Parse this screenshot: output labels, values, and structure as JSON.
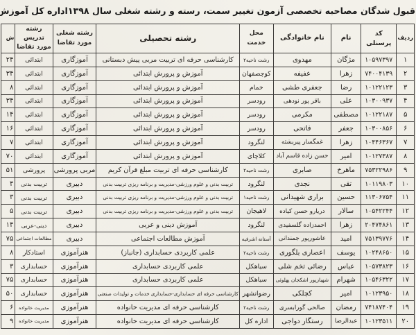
{
  "title": "قبول شدگان مصاحبه تخصصی آزمون تغییر سمت، رسته و رشته شغلی سال ۱۳۹۸اداره کل آموزش و پرورش استان گیلان",
  "table": {
    "headers": {
      "row": "ردیف",
      "code": "کد پرسنلی",
      "first_name": "نام",
      "last_name": "نام خانوادگی",
      "location": "محل خدمت",
      "education": "رشته تحصیلی",
      "job_field": "رشته شغلی مورد تقاضا",
      "teaching_field": "رشته تدریس مورد تقاضا",
      "clipped": "ش"
    },
    "rows": [
      {
        "row": "۱",
        "code": "۱۰۵۹۷۳۹۷",
        "first_name": "مژگان",
        "last_name": "مهدوی",
        "location": "رشت ناحیه۲",
        "education": "کارشناسی حرفه ای تربیت مربی پیش دبستانی",
        "job_field": "آموزگاری",
        "teaching_field": "ابتدائی",
        "clipped": "۲۴"
      },
      {
        "row": "۲",
        "code": "۷۴۰۰۴۱۳۹",
        "first_name": "زهرا",
        "last_name": "عفیفه",
        "location": "کوچصفهان",
        "education": "آموزش و پرورش ابتدائی",
        "job_field": "آموزگاری",
        "teaching_field": "ابتدائی",
        "clipped": "۳۴"
      },
      {
        "row": "۳",
        "code": "۱۰۱۲۲۱۲۳",
        "first_name": "رضا",
        "last_name": "جعفری طشی",
        "location": "خمام",
        "education": "آموزش و پرورش ابتدائی",
        "job_field": "آموزگاری",
        "teaching_field": "ابتدائی",
        "clipped": "۸"
      },
      {
        "row": "۴",
        "code": "۱۰۳۰۰۹۳۷",
        "first_name": "علی",
        "last_name": "باقر پور نودهی",
        "location": "رودسر",
        "education": "آموزش و پرورش ابتدائی",
        "job_field": "آموزگاری",
        "teaching_field": "ابتدائی",
        "clipped": "۳۴"
      },
      {
        "row": "۵",
        "code": "۱۰۱۲۲۱۸۷",
        "first_name": "مصطفی",
        "last_name": "مکرمی",
        "location": "رودسر",
        "education": "آموزش و پرورش ابتدائی",
        "job_field": "آموزگاری",
        "teaching_field": "ابتدائی",
        "clipped": "۱۴"
      },
      {
        "row": "۶",
        "code": "۱۰۳۰۰۸۵۶",
        "first_name": "جعفر",
        "last_name": "فاتحی",
        "location": "رودسر",
        "education": "آموزش و پرورش ابتدائی",
        "job_field": "آموزگاری",
        "teaching_field": "ابتدائی",
        "clipped": "۱۶"
      },
      {
        "row": "۷",
        "code": "۱۰۴۴۶۳۶۷",
        "first_name": "زهرا",
        "last_name": "غمگسار پیربشته",
        "location": "لنگرود",
        "education": "آموزش و پرورش ابتدائی",
        "job_field": "آموزگاری",
        "teaching_field": "ابتدائی",
        "clipped": "۷"
      },
      {
        "row": "۸",
        "code": "۱۰۱۲۷۳۸۷",
        "first_name": "امیر",
        "last_name": "حسن زاده قاسم آباد",
        "location": "کلاچای",
        "education": "آموزش و پرورش ابتدائی",
        "job_field": "آموزگاری",
        "teaching_field": "ابتدائی",
        "clipped": "۷۰"
      },
      {
        "row": "۹",
        "code": "۷۵۳۲۲۹۸۶",
        "first_name": "ماهرخ",
        "last_name": "صابری",
        "location": "رشت ناحیه۲",
        "education": "کارشناسی حرفه ای تربیت مبلغ قرآن کریم",
        "job_field": "مربی پرورشی",
        "teaching_field": "پرورشی",
        "clipped": "۵۱"
      },
      {
        "row": "۱۰",
        "code": "۱۰۱۱۹۸۰۳",
        "first_name": "تقی",
        "last_name": "نجدی",
        "location": "لنگرود",
        "education": "تربیت بدنی و علوم ورزشی-مدیریت و برنامه ریزی تربیت بدنی",
        "job_field": "دبیری",
        "teaching_field": "تربیت بدنی",
        "clipped": "۴"
      },
      {
        "row": "۱۱",
        "code": "۱۱۳۰۶۷۵۴",
        "first_name": "حسین",
        "last_name": "براری شهیدانی",
        "location": "رشت ناحیه۱",
        "education": "تربیت بدنی و علوم ورزشی-مدیریت و برنامه ریزی تربیت بدنی",
        "job_field": "دبیری",
        "teaching_field": "تربیت بدنی",
        "clipped": "۳"
      },
      {
        "row": "۱۲",
        "code": "۱۰۵۴۲۲۴۴",
        "first_name": "سالار",
        "last_name": "دریارو حسن کیاده",
        "location": "لاهیجان",
        "education": "تربیت بدنی و علوم ورزشی-مدیریت و برنامه ریزی تربیت بدنی",
        "job_field": "دبیری",
        "teaching_field": "تربیت بدنی",
        "clipped": "۵"
      },
      {
        "row": "۱۳",
        "code": "۲۰۴۷۴۸۶۱",
        "first_name": "زهرا",
        "last_name": "احمدزاده گلسفیدی",
        "location": "لنگرود",
        "education": "آموزش دینی و عربی",
        "job_field": "دبیری",
        "teaching_field": "دینی-عربی",
        "clipped": "۱۴"
      },
      {
        "row": "۱۴",
        "code": "۷۵۱۳۹۷۷۶",
        "first_name": "امید",
        "last_name": "عاشورپور جمندانی",
        "location": "آستانه اشرفیه",
        "education": "آموزش مطالعات اجتماعی",
        "job_field": "دبیری",
        "teaching_field": "مطالعات اجتماعی",
        "clipped": "۷۵"
      },
      {
        "row": "۱۵",
        "code": "۱۰۲۴۸۶۵۰",
        "first_name": "یوسف",
        "last_name": "اعصاری بلگوری",
        "location": "رشت ناحیه۲",
        "education": "علمی کاربردی حسابداری (جانباز)",
        "job_field": "هنرآموزی",
        "teaching_field": "استادکار",
        "clipped": "۸"
      },
      {
        "row": "۱۶",
        "code": "۱۰۵۷۳۸۲۳",
        "first_name": "عباس",
        "last_name": "رضائی تخم شلی",
        "location": "سیاهکل",
        "education": "علمی کاربردی حسابداری",
        "job_field": "هنرآموزی",
        "teaching_field": "حسابداری",
        "clipped": "۳"
      },
      {
        "row": "۱۷",
        "code": "۱۰۵۴۶۳۲۲",
        "first_name": "شهرام",
        "last_name": "شهبازپور اشکجان پهلوئی",
        "location": "سیاهکل",
        "education": "علمی کاربردی حسابداری",
        "job_field": "هنرآموزی",
        "teaching_field": "حسابداری",
        "clipped": "۷۵"
      },
      {
        "row": "۱۸",
        "code": "۱۰۱۲۳۹۵۰",
        "first_name": "امیر",
        "last_name": "کچلکی",
        "location": "رضوانشهر",
        "education": "کارشناسی حرفه ای حسابداری-حسابداری خدمات و تولیدات صنعتی",
        "job_field": "هنرآموزی",
        "teaching_field": "حسابداری",
        "clipped": "۵۰"
      },
      {
        "row": "۱۹",
        "code": "۷۴۱۸۷۴۰۴",
        "first_name": "رمضان",
        "last_name": "صالحی گورابسری",
        "location": "رشت ناحیه۲",
        "education": "کارشناسی حرفه ای مدیریت خانواده",
        "job_field": "هنرآموزی",
        "teaching_field": "مدیریت خانواده",
        "clipped": "۶"
      },
      {
        "row": "۲۰",
        "code": "۱۰۱۲۳۵۱۱",
        "first_name": "عبدالرضا",
        "last_name": "رستگار دواجی",
        "location": "اداره کل",
        "education": "کارشناسی حرفه ای مدیریت خانواده",
        "job_field": "هنرآموزی",
        "teaching_field": "مدیریت خانواده",
        "clipped": "۹"
      }
    ]
  },
  "colors": {
    "paper": "#f3f1ea",
    "ink": "#272421",
    "border": "#3c3a38"
  }
}
